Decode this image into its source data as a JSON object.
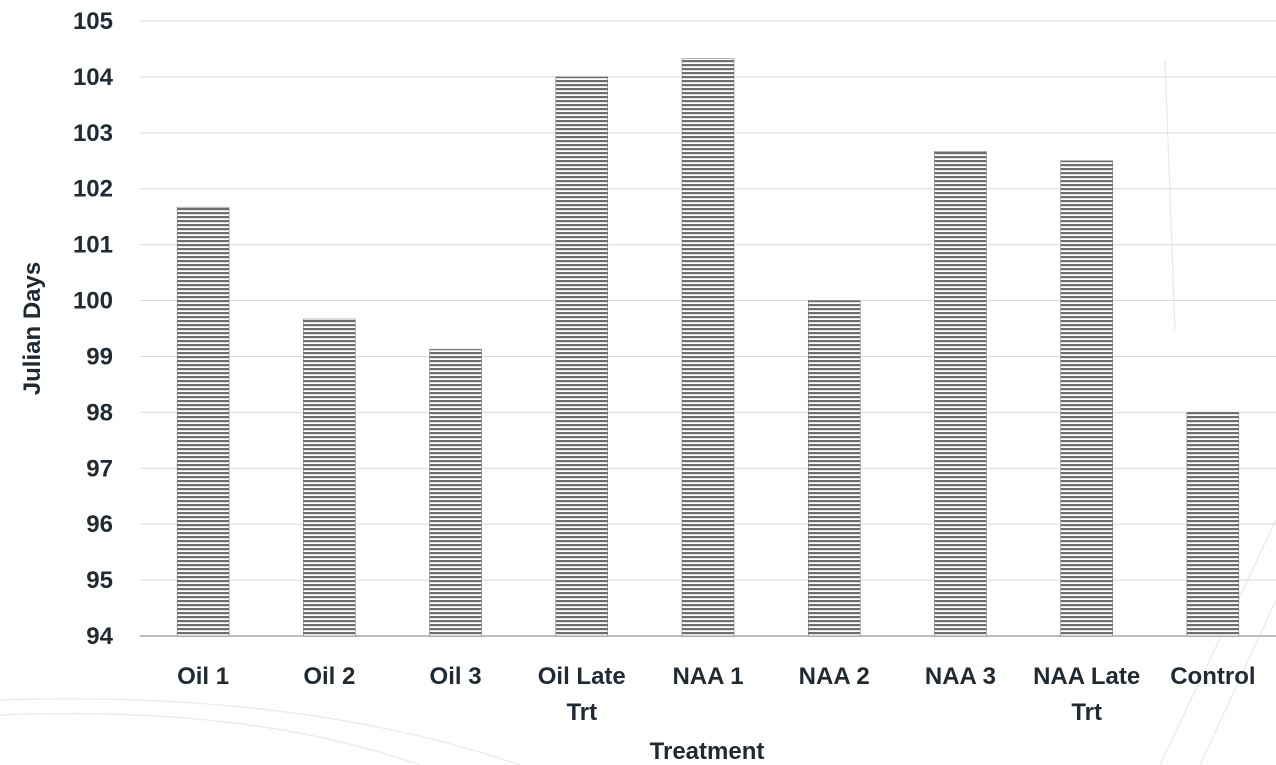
{
  "chart_data": {
    "type": "bar",
    "title": "",
    "xlabel": "Treatment",
    "ylabel": "Julian Days",
    "categories": [
      "Oil 1",
      "Oil 2",
      "Oil 3",
      "Oil Late Trt",
      "NAA 1",
      "NAA 2",
      "NAA 3",
      "NAA Late Trt",
      "Control"
    ],
    "values": [
      101.67,
      99.67,
      99.13,
      104.0,
      104.33,
      100.0,
      102.67,
      102.5,
      98.0
    ],
    "ylim": [
      94,
      105
    ],
    "yticks": [
      "94",
      "95",
      "96",
      "97",
      "98",
      "99",
      "100",
      "101",
      "102",
      "103",
      "104",
      "105"
    ],
    "grid": true,
    "legend": "none",
    "bar_color": "#6e6e6e"
  }
}
